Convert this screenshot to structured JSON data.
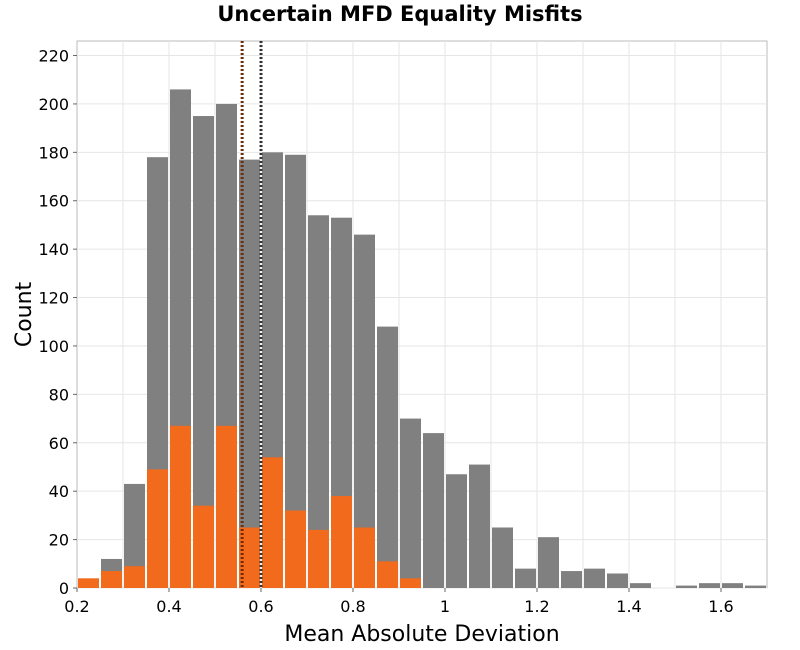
{
  "chart_data": {
    "type": "bar",
    "title": "Uncertain MFD Equality Misfits",
    "xlabel": "Mean Absolute Deviation",
    "ylabel": "Count",
    "xlim": [
      0.2,
      1.7
    ],
    "ylim": [
      0,
      226
    ],
    "bin_width": 0.05,
    "xticks": [
      0.2,
      0.4,
      0.6,
      0.8,
      1,
      1.2,
      1.4,
      1.6
    ],
    "xtick_labels": [
      "0.2",
      "0.4",
      "0.6",
      "0.8",
      "1",
      "1.2",
      "1.4",
      "1.6"
    ],
    "yticks": [
      0,
      20,
      40,
      60,
      80,
      100,
      120,
      140,
      160,
      180,
      200,
      220
    ],
    "ytick_labels": [
      "0",
      "20",
      "40",
      "60",
      "80",
      "100",
      "120",
      "140",
      "160",
      "180",
      "200",
      "220"
    ],
    "grid": true,
    "series": [
      {
        "color": "#808080",
        "bin_starts": [
          0.2,
          0.25,
          0.3,
          0.35,
          0.4,
          0.45,
          0.5,
          0.55,
          0.6,
          0.65,
          0.7,
          0.75,
          0.8,
          0.85,
          0.9,
          0.95,
          1.0,
          1.05,
          1.1,
          1.15,
          1.2,
          1.25,
          1.3,
          1.35,
          1.4,
          1.45,
          1.5,
          1.55,
          1.6,
          1.65
        ],
        "values": [
          0,
          12,
          43,
          178,
          206,
          195,
          200,
          177,
          180,
          179,
          154,
          153,
          146,
          108,
          70,
          64,
          47,
          51,
          25,
          8,
          21,
          7,
          8,
          6,
          2,
          0,
          1,
          2,
          2,
          1
        ]
      },
      {
        "color": "#f26a1b",
        "bin_starts": [
          0.2,
          0.25,
          0.3,
          0.35,
          0.4,
          0.45,
          0.5,
          0.55,
          0.6,
          0.65,
          0.7,
          0.75,
          0.8,
          0.85,
          0.9
        ],
        "values": [
          4,
          7,
          9,
          49,
          67,
          34,
          67,
          25,
          54,
          32,
          24,
          38,
          25,
          11,
          4
        ]
      }
    ],
    "vlines": [
      {
        "x": 0.559,
        "color": "#6b2f0c",
        "style": "dotted"
      },
      {
        "x": 0.6,
        "color": "#333333",
        "style": "dotted"
      }
    ]
  }
}
